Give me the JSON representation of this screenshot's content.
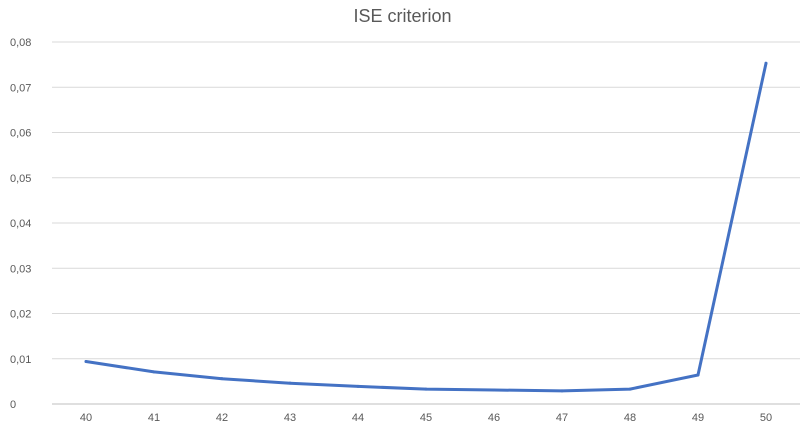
{
  "chart_data": {
    "type": "line",
    "title": "ISE criterion",
    "xlabel": "",
    "ylabel": "",
    "categories": [
      "40",
      "41",
      "42",
      "43",
      "44",
      "45",
      "46",
      "47",
      "48",
      "49",
      "50"
    ],
    "y_ticks": [
      "0",
      "0,01",
      "0,02",
      "0,03",
      "0,04",
      "0,05",
      "0,06",
      "0,07",
      "0,08"
    ],
    "ylim": [
      0,
      0.08
    ],
    "grid": true,
    "legend": "none",
    "series": [
      {
        "values": [
          0.0094,
          0.0071,
          0.0056,
          0.0046,
          0.0039,
          0.0033,
          0.0031,
          0.0029,
          0.0033,
          0.0064,
          0.0753
        ],
        "color": "#4472c4"
      }
    ],
    "colors": {
      "grid": "#d9d9d9",
      "axis": "#bfbfbf",
      "text": "#595959"
    }
  }
}
